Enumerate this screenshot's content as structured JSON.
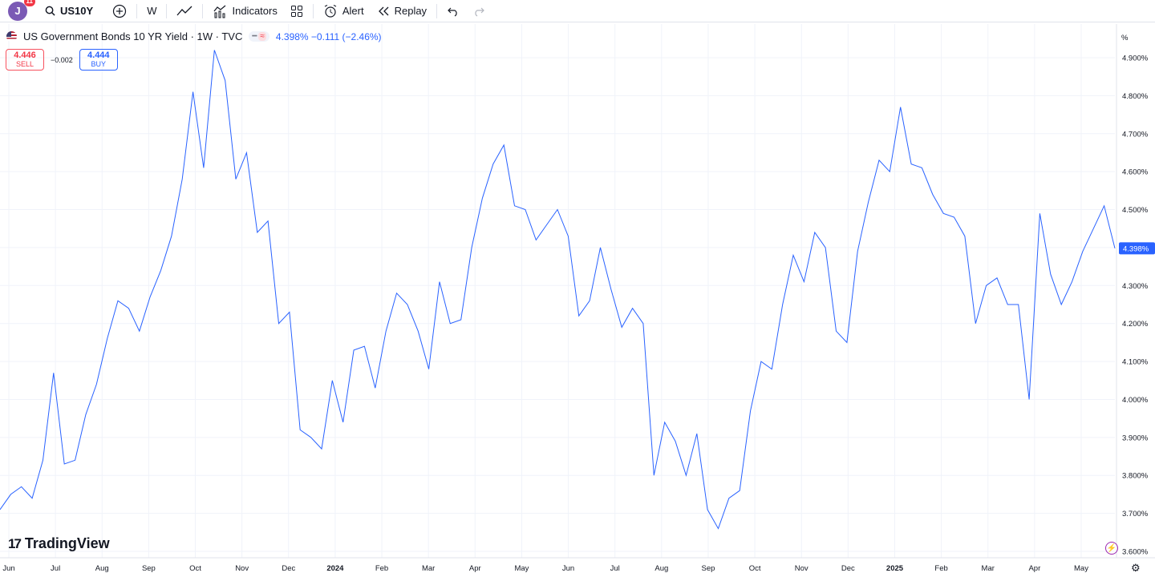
{
  "toolbar": {
    "avatar_letter": "J",
    "notification_count": "11",
    "symbol": "US10Y",
    "interval": "W",
    "indicators_label": "Indicators",
    "alert_label": "Alert",
    "replay_label": "Replay"
  },
  "legend": {
    "title": "US Government Bonds 10 YR Yield · 1W · TVC",
    "values": "4.398%  −0.111 (−2.46%)"
  },
  "trade": {
    "sell_price": "4.446",
    "sell_label": "SELL",
    "spread": "−0.002",
    "buy_price": "4.444",
    "buy_label": "BUY"
  },
  "brand": {
    "name": "TradingView",
    "mark": "17"
  },
  "colors": {
    "line": "#2962ff",
    "price_label_bg": "#2962ff",
    "grid": "#f0f3fa"
  },
  "chart_data": {
    "type": "line",
    "series": [
      {
        "values": [
          3.71,
          3.75,
          3.77,
          3.74,
          3.84,
          4.07,
          3.83,
          3.84,
          3.96,
          4.04,
          4.16,
          4.26,
          4.24,
          4.18,
          4.27,
          4.34,
          4.43,
          4.58,
          4.81,
          4.61,
          4.92,
          4.84,
          4.58,
          4.65,
          4.44,
          4.47,
          4.2,
          4.23,
          3.92,
          3.9,
          3.87,
          4.05,
          3.94,
          4.13,
          4.14,
          4.03,
          4.18,
          4.28,
          4.25,
          4.18,
          4.08,
          4.31,
          4.2,
          4.21,
          4.4,
          4.53,
          4.62,
          4.67,
          4.51,
          4.5,
          4.42,
          4.46,
          4.5,
          4.43,
          4.22,
          4.26,
          4.4,
          4.29,
          4.19,
          4.24,
          4.2,
          3.8,
          3.94,
          3.89,
          3.8,
          3.91,
          3.71,
          3.66,
          3.74,
          3.76,
          3.97,
          4.1,
          4.08,
          4.25,
          4.38,
          4.31,
          4.44,
          4.4,
          4.18,
          4.15,
          4.39,
          4.52,
          4.63,
          4.6,
          4.77,
          4.62,
          4.61,
          4.54,
          4.49,
          4.48,
          4.43,
          4.2,
          4.3,
          4.32,
          4.25,
          4.25,
          4.0,
          4.49,
          4.33,
          4.25,
          4.31,
          4.39,
          4.45,
          4.51,
          4.398
        ]
      }
    ],
    "x_ticks": [
      "Jun",
      "Jul",
      "Aug",
      "Sep",
      "Oct",
      "Nov",
      "Dec",
      "2024",
      "Feb",
      "Mar",
      "Apr",
      "May",
      "Jun",
      "Jul",
      "Aug",
      "Sep",
      "Oct",
      "Nov",
      "Dec",
      "2025",
      "Feb",
      "Mar",
      "Apr",
      "May"
    ],
    "y_ticks": [
      "4.900%",
      "4.800%",
      "4.700%",
      "4.600%",
      "4.500%",
      "4.400%",
      "4.300%",
      "4.200%",
      "4.100%",
      "4.000%",
      "3.900%",
      "3.800%",
      "3.700%",
      "3.600%"
    ],
    "y_unit": "%",
    "ylim": [
      3.6,
      4.9
    ],
    "last_value_label": "4.398%",
    "grid": true
  }
}
